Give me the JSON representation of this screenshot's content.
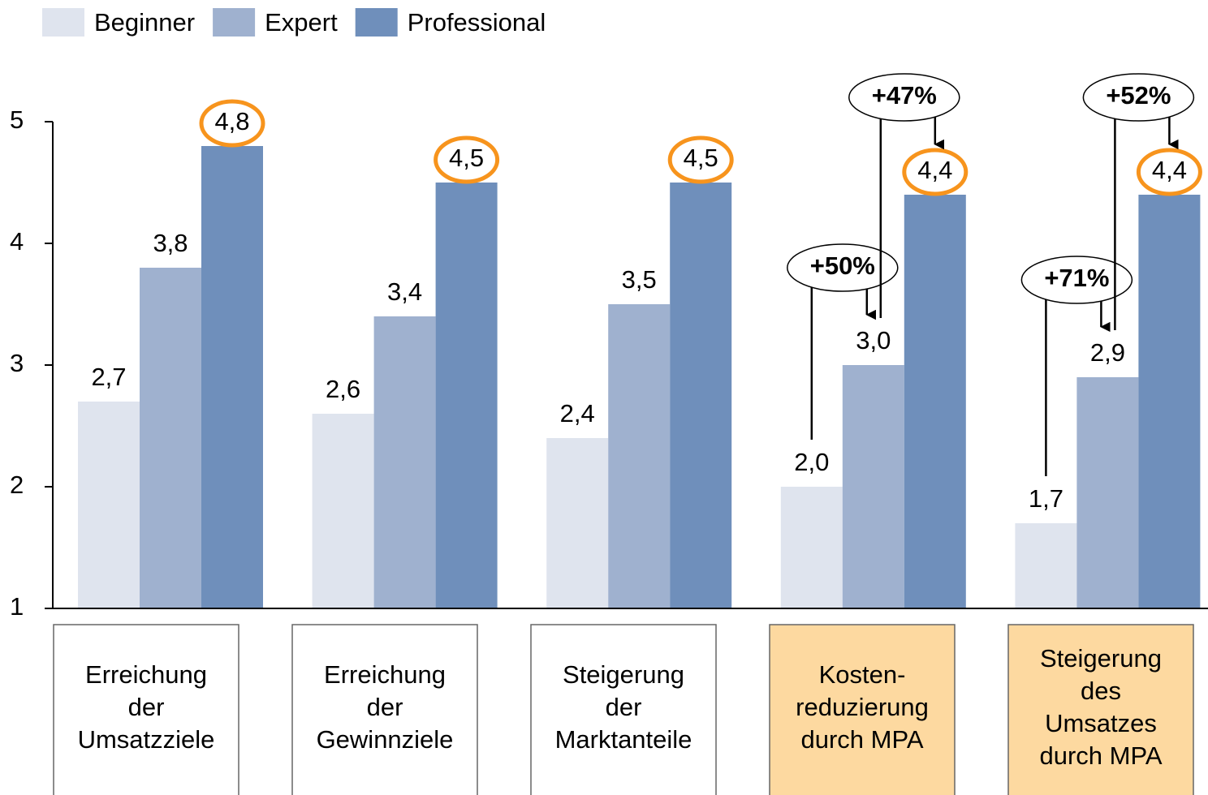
{
  "chart_data": {
    "type": "bar",
    "categories": [
      [
        "Erreichung",
        "der",
        "Umsatzziele"
      ],
      [
        "Erreichung",
        "der",
        "Gewinnziele"
      ],
      [
        "Steigerung",
        "der",
        "Marktanteile"
      ],
      [
        "Kosten-",
        "reduzierung",
        "durch MPA"
      ],
      [
        "Steigerung",
        "des",
        "Umsatzes",
        "durch MPA"
      ]
    ],
    "category_box_colors": [
      "#ffffff",
      "#ffffff",
      "#ffffff",
      "#fdd9a0",
      "#fdd9a0"
    ],
    "series": [
      {
        "name": "Beginner",
        "color": "#dfe4ee",
        "values": [
          2.7,
          2.6,
          2.4,
          2.0,
          1.7
        ],
        "value_labels": [
          "2,7",
          "2,6",
          "2,4",
          "2,0",
          "1,7"
        ]
      },
      {
        "name": "Expert",
        "color": "#9fb1cf",
        "values": [
          3.8,
          3.4,
          3.5,
          3.0,
          2.9
        ],
        "value_labels": [
          "3,8",
          "3,4",
          "3,5",
          "3,0",
          "2,9"
        ]
      },
      {
        "name": "Professional",
        "color": "#6f8fbb",
        "values": [
          4.8,
          4.5,
          4.5,
          4.4,
          4.4
        ],
        "value_labels": [
          "4,8",
          "4,5",
          "4,5",
          "4,4",
          "4,4"
        ],
        "circled": true,
        "circle_color": "#f7941d"
      }
    ],
    "ylim": [
      1,
      5
    ],
    "yticks": [
      1,
      2,
      3,
      4,
      5
    ],
    "legend": "top-left",
    "annotations": [
      {
        "text": "+50%",
        "category": 3,
        "from": 0,
        "to": 1
      },
      {
        "text": "+47%",
        "category": 3,
        "from": 1,
        "to": 2
      },
      {
        "text": "+71%",
        "category": 4,
        "from": 0,
        "to": 1
      },
      {
        "text": "+52%",
        "category": 4,
        "from": 1,
        "to": 2
      }
    ]
  }
}
